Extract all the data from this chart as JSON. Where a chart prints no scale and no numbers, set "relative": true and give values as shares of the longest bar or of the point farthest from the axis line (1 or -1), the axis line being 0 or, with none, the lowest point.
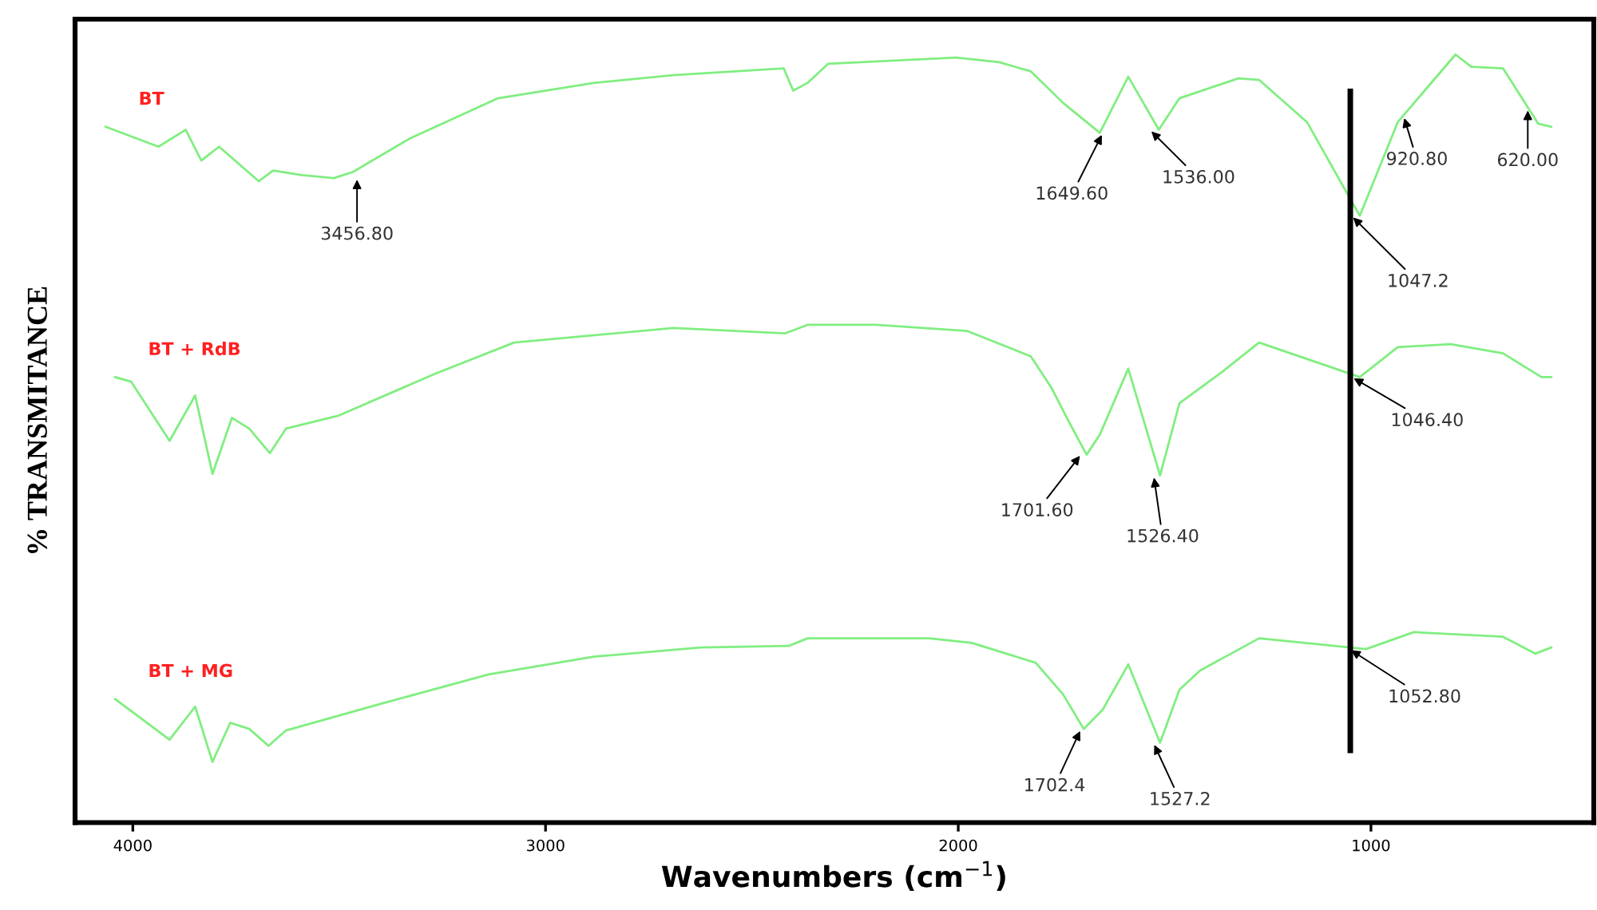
{
  "chart_data": {
    "type": "line",
    "relative": true,
    "xlabel": "Wavenumbers (cm$^{−1}$)",
    "ylabel": "% TRANSMITANCE",
    "xlim": [
      4140,
      460
    ],
    "xticks": [
      4000,
      3000,
      2000,
      1000
    ],
    "grid": false,
    "legend": false,
    "marker": "none",
    "line_style": "solid",
    "series": [
      {
        "name": "BT",
        "color": "#80ee80",
        "x": [
          4066,
          3938,
          3872,
          3834,
          3791,
          3695,
          3660,
          3590,
          3513,
          3467,
          3331,
          3115,
          2883,
          2690,
          2423,
          2400,
          2365,
          2315,
          2005,
          1901,
          1824,
          1746,
          1657,
          1588,
          1514,
          1464,
          1321,
          1271,
          1155,
          1027,
          935,
          795,
          757,
          680,
          595,
          563
        ],
        "values": [
          0.906,
          0.88,
          0.902,
          0.862,
          0.88,
          0.835,
          0.849,
          0.843,
          0.839,
          0.847,
          0.89,
          0.943,
          0.963,
          0.973,
          0.982,
          0.953,
          0.963,
          0.988,
          0.996,
          0.99,
          0.978,
          0.937,
          0.898,
          0.971,
          0.902,
          0.943,
          0.969,
          0.967,
          0.912,
          0.79,
          0.912,
          1.0,
          0.984,
          0.982,
          0.91,
          0.906
        ]
      },
      {
        "name": "BT + RdB",
        "color": "#80ee80",
        "x": [
          4043,
          4004,
          3911,
          3849,
          3807,
          3760,
          3718,
          3668,
          3629,
          3501,
          3269,
          3076,
          2690,
          2419,
          2365,
          2199,
          1978,
          1824,
          1774,
          1735,
          1689,
          1657,
          1588,
          1511,
          1464,
          1360,
          1271,
          1027,
          935,
          807,
          680,
          587,
          563
        ],
        "values": [
          0.58,
          0.574,
          0.497,
          0.556,
          0.454,
          0.527,
          0.513,
          0.481,
          0.513,
          0.53,
          0.584,
          0.625,
          0.644,
          0.637,
          0.648,
          0.648,
          0.64,
          0.607,
          0.566,
          0.525,
          0.479,
          0.505,
          0.591,
          0.452,
          0.546,
          0.587,
          0.625,
          0.58,
          0.619,
          0.623,
          0.611,
          0.58,
          0.58
        ]
      },
      {
        "name": "BT + MG",
        "color": "#80ee80",
        "x": [
          4043,
          3911,
          3849,
          3807,
          3764,
          3718,
          3671,
          3629,
          3397,
          3138,
          2883,
          2624,
          2411,
          2365,
          2071,
          1967,
          1812,
          1746,
          1696,
          1650,
          1588,
          1511,
          1464,
          1414,
          1271,
          1012,
          896,
          680,
          602,
          563
        ],
        "values": [
          0.161,
          0.108,
          0.151,
          0.079,
          0.13,
          0.122,
          0.1,
          0.12,
          0.155,
          0.193,
          0.216,
          0.228,
          0.23,
          0.24,
          0.24,
          0.234,
          0.208,
          0.167,
          0.122,
          0.147,
          0.206,
          0.104,
          0.173,
          0.198,
          0.24,
          0.226,
          0.248,
          0.242,
          0.22,
          0.228
        ]
      }
    ],
    "ref_lines": [
      {
        "axis": "x",
        "value": 1050,
        "color": "#000000"
      }
    ],
    "annotations": [
      {
        "text": "3456.80",
        "x": 3456.8,
        "y": 0.84
      },
      {
        "text": "1649.60",
        "x": 1649.6,
        "y": 0.898
      },
      {
        "text": "1536.00",
        "x": 1536.0,
        "y": 0.902
      },
      {
        "text": "1047.2",
        "x": 1047.2,
        "y": 0.79
      },
      {
        "text": "920.80",
        "x": 920.8,
        "y": 0.92
      },
      {
        "text": "620.00",
        "x": 620.0,
        "y": 0.93
      },
      {
        "text": "1701.60",
        "x": 1701.6,
        "y": 0.48
      },
      {
        "text": "1526.40",
        "x": 1526.4,
        "y": 0.452
      },
      {
        "text": "1046.40",
        "x": 1046.4,
        "y": 0.58
      },
      {
        "text": "1702.4",
        "x": 1702.4,
        "y": 0.122
      },
      {
        "text": "1527.2",
        "x": 1527.2,
        "y": 0.104
      },
      {
        "text": "1052.80",
        "x": 1052.8,
        "y": 0.226
      }
    ]
  }
}
